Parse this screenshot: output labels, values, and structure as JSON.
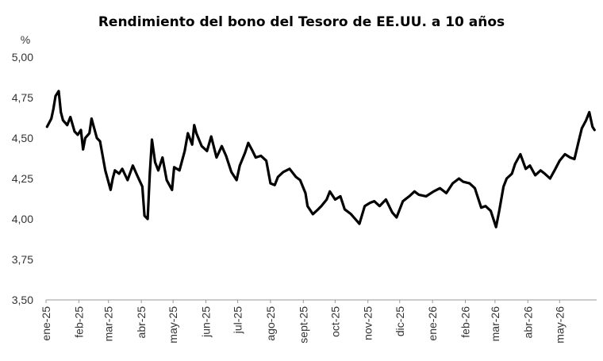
{
  "chart_data": {
    "type": "line",
    "title": "Rendimiento del bono del Tesoro de EE.UU. a 10 años",
    "ylabel": "%",
    "xlabel": "",
    "ylim": [
      3.5,
      5.0
    ],
    "y_ticks": [
      "3,50",
      "3,75",
      "4,00",
      "4,25",
      "4,50",
      "4,75",
      "5,00"
    ],
    "y_tick_values": [
      3.5,
      3.75,
      4.0,
      4.25,
      4.5,
      4.75,
      5.0
    ],
    "x_ticks": [
      "ene-25",
      "feb-25",
      "mar-25",
      "abr-25",
      "may-25",
      "jun-25",
      "jul-25",
      "ago-25",
      "sept-25",
      "oct-25",
      "nov-25",
      "dic-25",
      "ene-26",
      "feb-26",
      "mar-26",
      "abr-26",
      "may-26"
    ],
    "xlim": [
      "2025-01-01",
      "2026-06-05"
    ],
    "grid": false,
    "legend": "none",
    "line_color": "#000000",
    "series": [
      {
        "x": [
          "2025-01-02",
          "2025-01-06",
          "2025-01-08",
          "2025-01-10",
          "2025-01-13",
          "2025-01-15",
          "2025-01-17",
          "2025-01-21",
          "2025-01-24",
          "2025-01-28",
          "2025-01-31",
          "2025-02-03",
          "2025-02-05",
          "2025-02-07",
          "2025-02-11",
          "2025-02-13",
          "2025-02-18",
          "2025-02-21",
          "2025-02-26",
          "2025-03-03",
          "2025-03-05",
          "2025-03-07",
          "2025-03-11",
          "2025-03-14",
          "2025-03-19",
          "2025-03-24",
          "2025-03-28",
          "2025-04-02",
          "2025-04-04",
          "2025-04-07",
          "2025-04-09",
          "2025-04-11",
          "2025-04-14",
          "2025-04-17",
          "2025-04-21",
          "2025-04-25",
          "2025-04-30",
          "2025-05-02",
          "2025-05-07",
          "2025-05-12",
          "2025-05-15",
          "2025-05-19",
          "2025-05-21",
          "2025-05-23",
          "2025-05-28",
          "2025-06-02",
          "2025-06-06",
          "2025-06-11",
          "2025-06-16",
          "2025-06-20",
          "2025-06-25",
          "2025-06-30",
          "2025-07-03",
          "2025-07-08",
          "2025-07-11",
          "2025-07-15",
          "2025-07-18",
          "2025-07-23",
          "2025-07-28",
          "2025-08-01",
          "2025-08-05",
          "2025-08-08",
          "2025-08-13",
          "2025-08-19",
          "2025-08-25",
          "2025-08-29",
          "2025-09-03",
          "2025-09-05",
          "2025-09-10",
          "2025-09-15",
          "2025-09-18",
          "2025-09-23",
          "2025-09-26",
          "2025-10-01",
          "2025-10-06",
          "2025-10-10",
          "2025-10-16",
          "2025-10-20",
          "2025-10-24",
          "2025-10-29",
          "2025-11-03",
          "2025-11-07",
          "2025-11-12",
          "2025-11-18",
          "2025-11-24",
          "2025-11-28",
          "2025-12-04",
          "2025-12-10",
          "2025-12-15",
          "2025-12-19",
          "2025-12-26",
          "2026-01-02",
          "2026-01-08",
          "2026-01-14",
          "2026-01-20",
          "2026-01-26",
          "2026-01-30",
          "2026-02-05",
          "2026-02-10",
          "2026-02-16",
          "2026-02-20",
          "2026-02-25",
          "2026-03-02",
          "2026-03-05",
          "2026-03-09",
          "2026-03-12",
          "2026-03-17",
          "2026-03-20",
          "2026-03-25",
          "2026-03-30",
          "2026-04-03",
          "2026-04-08",
          "2026-04-13",
          "2026-04-17",
          "2026-04-22",
          "2026-04-27",
          "2026-05-01",
          "2026-05-06",
          "2026-05-11",
          "2026-05-15",
          "2026-05-19",
          "2026-05-22",
          "2026-05-26",
          "2026-05-29",
          "2026-06-01",
          "2026-06-03"
        ],
        "y": [
          4.57,
          4.62,
          4.68,
          4.76,
          4.79,
          4.66,
          4.61,
          4.58,
          4.63,
          4.54,
          4.52,
          4.55,
          4.43,
          4.5,
          4.53,
          4.62,
          4.5,
          4.48,
          4.3,
          4.18,
          4.25,
          4.3,
          4.28,
          4.31,
          4.24,
          4.33,
          4.27,
          4.2,
          4.02,
          4.0,
          4.28,
          4.49,
          4.35,
          4.3,
          4.38,
          4.24,
          4.18,
          4.32,
          4.3,
          4.42,
          4.53,
          4.46,
          4.58,
          4.53,
          4.45,
          4.42,
          4.51,
          4.38,
          4.45,
          4.39,
          4.29,
          4.24,
          4.33,
          4.41,
          4.47,
          4.42,
          4.38,
          4.39,
          4.36,
          4.22,
          4.21,
          4.26,
          4.29,
          4.31,
          4.26,
          4.24,
          4.16,
          4.08,
          4.03,
          4.06,
          4.08,
          4.12,
          4.17,
          4.12,
          4.14,
          4.06,
          4.03,
          4.0,
          3.97,
          4.08,
          4.1,
          4.11,
          4.08,
          4.12,
          4.04,
          4.01,
          4.11,
          4.14,
          4.17,
          4.15,
          4.14,
          4.17,
          4.19,
          4.16,
          4.22,
          4.25,
          4.23,
          4.22,
          4.19,
          4.07,
          4.08,
          4.05,
          3.95,
          4.05,
          4.2,
          4.25,
          4.28,
          4.34,
          4.4,
          4.31,
          4.33,
          4.27,
          4.3,
          4.28,
          4.25,
          4.31,
          4.36,
          4.4,
          4.38,
          4.37,
          4.48,
          4.56,
          4.61,
          4.66,
          4.57,
          4.55
        ]
      }
    ]
  }
}
